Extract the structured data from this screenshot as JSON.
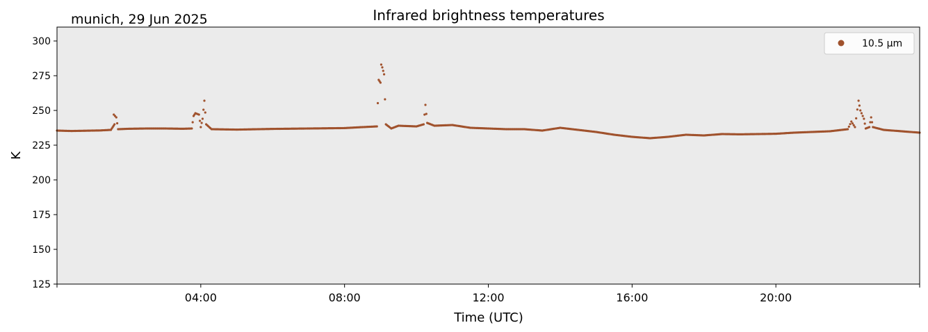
{
  "chart_data": {
    "type": "scatter",
    "title": "Infrared brightness temperatures",
    "subtitle": "munich, 29 Jun 2025",
    "xlabel": "Time (UTC)",
    "ylabel": "K",
    "xlim": [
      0,
      24
    ],
    "ylim": [
      125,
      310
    ],
    "x_ticks": [
      0,
      4,
      8,
      12,
      16,
      20,
      24
    ],
    "x_tick_labels": [
      "",
      "04:00",
      "08:00",
      "12:00",
      "16:00",
      "20:00",
      ""
    ],
    "y_ticks": [
      125,
      150,
      175,
      200,
      225,
      250,
      275,
      300
    ],
    "y_tick_labels": [
      "125",
      "150",
      "175",
      "200",
      "225",
      "250",
      "275",
      "300"
    ],
    "grid": false,
    "legend_position": "top-right",
    "background_color": "#ebebeb",
    "series": [
      {
        "name": "10.5 µm",
        "color": "#a0522d",
        "points": [
          [
            0.0,
            235.5
          ],
          [
            0.4,
            235.2
          ],
          [
            0.8,
            235.4
          ],
          [
            1.2,
            235.6
          ],
          [
            1.5,
            236.0
          ],
          [
            1.55,
            238
          ],
          [
            1.6,
            240
          ],
          [
            1.58,
            247
          ],
          [
            1.65,
            245
          ],
          [
            1.7,
            236.5
          ],
          [
            2.0,
            236.8
          ],
          [
            2.5,
            237.0
          ],
          [
            3.0,
            237.0
          ],
          [
            3.5,
            236.8
          ],
          [
            3.75,
            237.0
          ],
          [
            3.8,
            246
          ],
          [
            3.85,
            248
          ],
          [
            3.95,
            247
          ],
          [
            4.0,
            238
          ],
          [
            4.05,
            244
          ],
          [
            4.1,
            257
          ],
          [
            4.15,
            240
          ],
          [
            4.3,
            236.5
          ],
          [
            5.0,
            236.2
          ],
          [
            6.0,
            236.7
          ],
          [
            7.0,
            237.0
          ],
          [
            8.0,
            237.3
          ],
          [
            8.5,
            238.0
          ],
          [
            8.9,
            238.5
          ],
          [
            8.95,
            272
          ],
          [
            9.0,
            270
          ],
          [
            9.02,
            283
          ],
          [
            9.05,
            281
          ],
          [
            9.1,
            276
          ],
          [
            9.15,
            240
          ],
          [
            9.3,
            237.0
          ],
          [
            9.5,
            239.0
          ],
          [
            10.0,
            238.5
          ],
          [
            10.2,
            240
          ],
          [
            10.25,
            254
          ],
          [
            10.3,
            241
          ],
          [
            10.5,
            239.0
          ],
          [
            11.0,
            239.5
          ],
          [
            11.5,
            237.5
          ],
          [
            12.0,
            237.0
          ],
          [
            12.5,
            236.5
          ],
          [
            13.0,
            236.5
          ],
          [
            13.5,
            235.5
          ],
          [
            14.0,
            237.5
          ],
          [
            14.5,
            236.0
          ],
          [
            15.0,
            234.5
          ],
          [
            15.5,
            232.5
          ],
          [
            16.0,
            231.0
          ],
          [
            16.5,
            230.0
          ],
          [
            17.0,
            231.0
          ],
          [
            17.5,
            232.5
          ],
          [
            18.0,
            232.0
          ],
          [
            18.5,
            233.0
          ],
          [
            19.0,
            232.8
          ],
          [
            19.5,
            233.0
          ],
          [
            20.0,
            233.2
          ],
          [
            20.5,
            234.0
          ],
          [
            21.0,
            234.5
          ],
          [
            21.5,
            235.0
          ],
          [
            22.0,
            236.5
          ],
          [
            22.1,
            242
          ],
          [
            22.2,
            238
          ],
          [
            22.3,
            257
          ],
          [
            22.35,
            250
          ],
          [
            22.45,
            244
          ],
          [
            22.5,
            237
          ],
          [
            22.6,
            238
          ],
          [
            22.65,
            245
          ],
          [
            22.7,
            238
          ],
          [
            23.0,
            236.0
          ],
          [
            23.5,
            235.0
          ],
          [
            24.0,
            234.0
          ]
        ]
      }
    ]
  }
}
